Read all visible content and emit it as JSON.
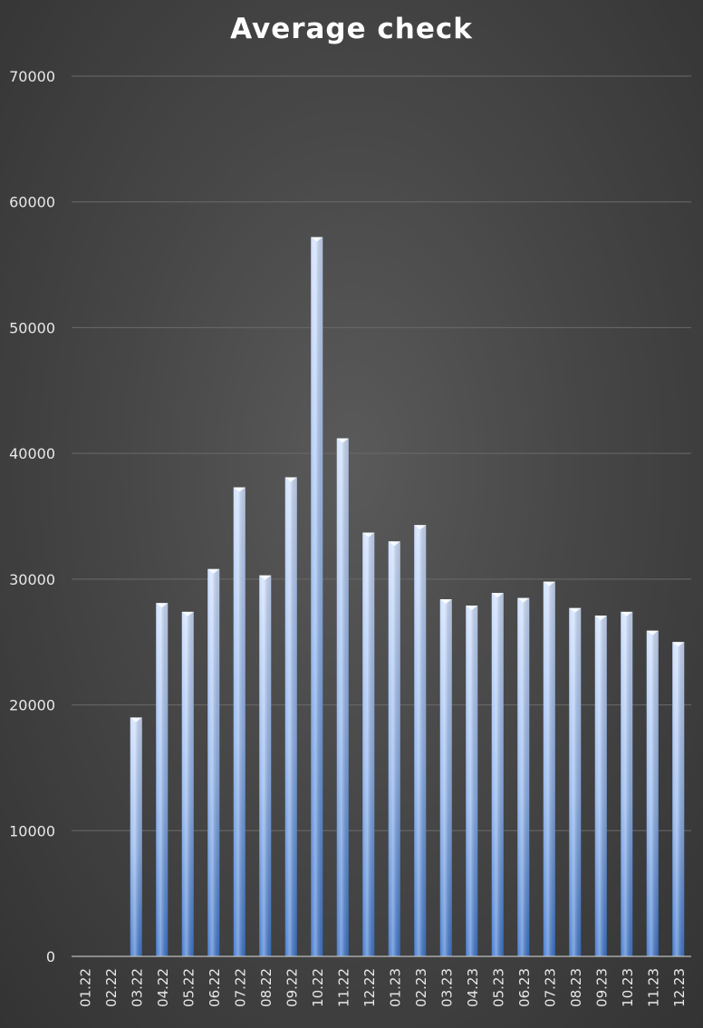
{
  "chart_data": {
    "type": "bar",
    "title": "Average check",
    "xlabel": "",
    "ylabel": "",
    "ylim": [
      0,
      70000
    ],
    "yticks": [
      0,
      10000,
      20000,
      30000,
      40000,
      50000,
      60000,
      70000
    ],
    "grid": true,
    "legend": "none",
    "categories": [
      "01.22",
      "02.22",
      "03.22",
      "04.22",
      "05.22",
      "06.22",
      "07.22",
      "08.22",
      "09.22",
      "10.22",
      "11.22",
      "12.22",
      "01.23",
      "02.23",
      "03.23",
      "04.23",
      "05.23",
      "06.23",
      "07.23",
      "08.23",
      "09.23",
      "10.23",
      "11.23",
      "12.23"
    ],
    "values": [
      0,
      0,
      19000,
      28100,
      27400,
      30800,
      37300,
      30300,
      38100,
      57200,
      41200,
      33700,
      33000,
      34300,
      28400,
      27900,
      28900,
      28500,
      29800,
      27700,
      27100,
      27400,
      25900,
      25000
    ],
    "colors": {
      "bar_light": "#c9dcff",
      "bar_mid": "#8fb4ee",
      "bar_dark": "#3f78cf",
      "grid": "#6a6a6a",
      "text": "#e8e8e8"
    }
  }
}
